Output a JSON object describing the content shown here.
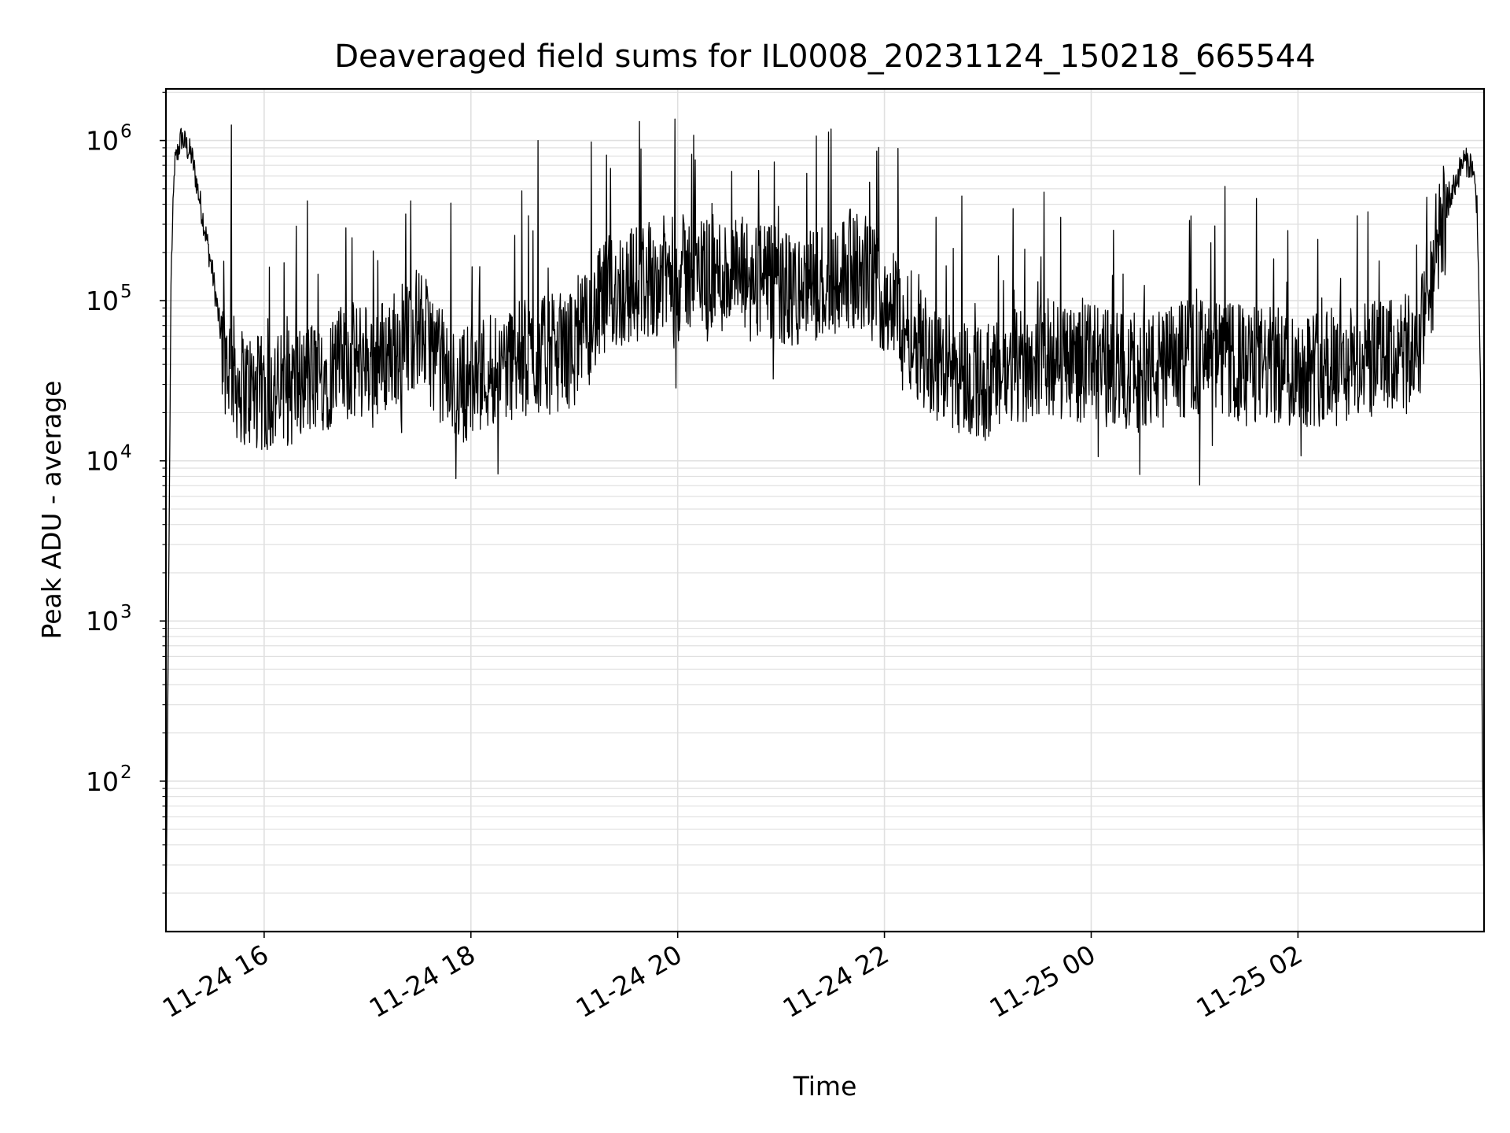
{
  "chart_data": {
    "type": "line",
    "title": "Deaveraged field sums for IL0008_20231124_150218_665544",
    "xlabel": "Time",
    "ylabel": "Peak ADU - average",
    "yscale": "log",
    "ylim": [
      11.5,
      2100000
    ],
    "xlim": [
      "2023-11-24 15:03",
      "2023-11-25 03:48"
    ],
    "grid": true,
    "line_color": "#000000",
    "grid_color": "#e0e0e0",
    "x_ticks": [
      {
        "t": "2023-11-24 16:00",
        "label": "11-24 16"
      },
      {
        "t": "2023-11-24 18:00",
        "label": "11-24 18"
      },
      {
        "t": "2023-11-24 20:00",
        "label": "11-24 20"
      },
      {
        "t": "2023-11-24 22:00",
        "label": "11-24 22"
      },
      {
        "t": "2023-11-25 00:00",
        "label": "11-25 00"
      },
      {
        "t": "2023-11-25 02:00",
        "label": "11-25 02"
      }
    ],
    "y_ticks": [
      {
        "value": 100,
        "base": "10",
        "exp": "2"
      },
      {
        "value": 1000,
        "base": "10",
        "exp": "3"
      },
      {
        "value": 10000,
        "base": "10",
        "exp": "4"
      },
      {
        "value": 100000,
        "base": "10",
        "exp": "5"
      },
      {
        "value": 1000000,
        "base": "10",
        "exp": "6"
      }
    ],
    "series": [
      {
        "x": [
          "2023-11-24 15:03",
          "2023-11-24 15:04",
          "2023-11-24 15:06",
          "2023-11-24 15:08",
          "2023-11-24 15:12",
          "2023-11-24 15:18",
          "2023-11-24 15:24",
          "2023-11-24 15:30",
          "2023-11-24 15:36",
          "2023-11-24 15:45",
          "2023-11-24 16:00",
          "2023-11-24 16:20",
          "2023-11-24 16:45",
          "2023-11-24 17:10",
          "2023-11-24 17:30",
          "2023-11-24 17:50",
          "2023-11-24 18:15",
          "2023-11-24 18:40",
          "2023-11-24 19:00",
          "2023-11-24 19:20",
          "2023-11-24 19:45",
          "2023-11-24 20:10",
          "2023-11-24 20:40",
          "2023-11-24 21:10",
          "2023-11-24 21:40",
          "2023-11-24 22:00",
          "2023-11-24 22:30",
          "2023-11-24 23:00",
          "2023-11-24 23:30",
          "2023-11-25 00:00",
          "2023-11-25 00:30",
          "2023-11-25 01:00",
          "2023-11-25 01:30",
          "2023-11-25 02:00",
          "2023-11-25 02:30",
          "2023-11-25 03:00",
          "2023-11-25 03:10",
          "2023-11-25 03:20",
          "2023-11-25 03:30",
          "2023-11-25 03:36",
          "2023-11-25 03:41",
          "2023-11-25 03:44",
          "2023-11-25 03:46",
          "2023-11-25 03:47",
          "2023-11-25 03:48"
        ],
        "y": [
          12,
          250,
          150000,
          700000,
          1050000,
          800000,
          350000,
          150000,
          50000,
          30000,
          25000,
          30000,
          40000,
          45000,
          70000,
          28000,
          40000,
          45000,
          50000,
          110000,
          140000,
          150000,
          140000,
          110000,
          160000,
          110000,
          40000,
          30000,
          45000,
          40000,
          35000,
          45000,
          40000,
          38000,
          40000,
          45000,
          50000,
          200000,
          500000,
          750000,
          700000,
          400000,
          30000,
          150,
          20
        ]
      }
    ],
    "spikes": [
      {
        "t": "2023-11-24 15:41",
        "y": 1250000
      },
      {
        "t": "2023-11-24 18:39",
        "y": 1000000
      },
      {
        "t": "2023-11-24 20:08",
        "y": 820000
      },
      {
        "t": "2023-11-24 20:47",
        "y": 650000
      },
      {
        "t": "2023-11-24 21:29",
        "y": 1180000
      },
      {
        "t": "2023-11-24 16:25",
        "y": 420000
      },
      {
        "t": "2023-11-24 17:25",
        "y": 420000
      },
      {
        "t": "2023-11-24 22:45",
        "y": 450000
      }
    ]
  }
}
